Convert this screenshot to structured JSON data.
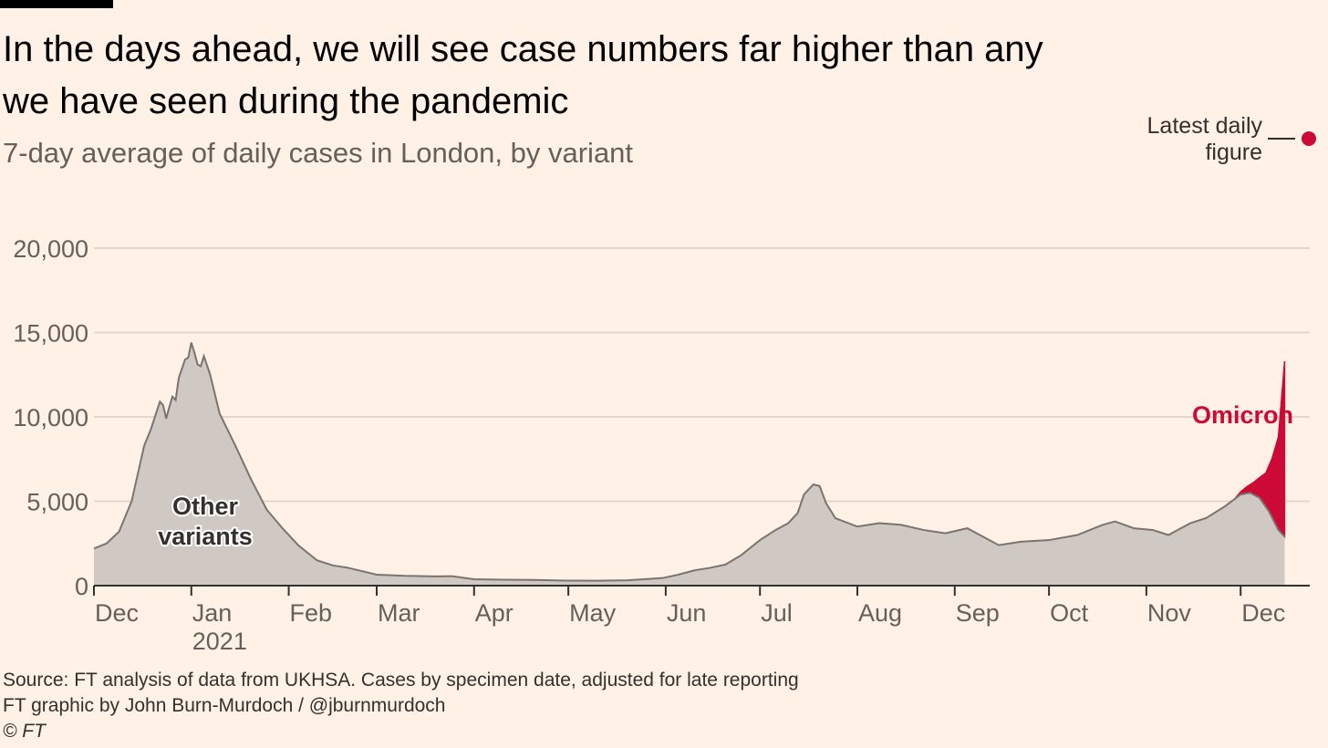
{
  "header": {
    "title": "In the days ahead, we will see case numbers far higher than any we have seen during the pandemic",
    "subtitle": "7-day average of daily cases in London, by variant"
  },
  "legend": {
    "latest_line1": "Latest daily",
    "latest_line2": "figure"
  },
  "footer": {
    "source": "Source: FT analysis of data from UKHSA. Cases by specimen date, adjusted for late reporting",
    "credit": "FT graphic by John Burn-Murdoch / @jburnmurdoch",
    "copyright": "© FT"
  },
  "colors": {
    "background": "#fff1e5",
    "other_variants_fill": "#d0c9c3",
    "other_variants_line": "#7a7470",
    "omicron": "#cc0a35",
    "grid": "#e3d7cc",
    "axis": "#33302e"
  },
  "chart_data": {
    "type": "area",
    "stacked": true,
    "ylim": [
      0,
      20000
    ],
    "yticks": [
      0,
      5000,
      10000,
      15000,
      20000
    ],
    "ytick_labels": [
      "0",
      "5,000",
      "10,000",
      "15,000",
      "20,000"
    ],
    "xlim": [
      "2020-12-01",
      "2021-12-23"
    ],
    "xticks": [
      {
        "date": "2020-12-01",
        "label": "Dec"
      },
      {
        "date": "2021-01-01",
        "label": "Jan",
        "sublabel": "2021"
      },
      {
        "date": "2021-02-01",
        "label": "Feb"
      },
      {
        "date": "2021-03-01",
        "label": "Mar"
      },
      {
        "date": "2021-04-01",
        "label": "Apr"
      },
      {
        "date": "2021-05-01",
        "label": "May"
      },
      {
        "date": "2021-06-01",
        "label": "Jun"
      },
      {
        "date": "2021-07-01",
        "label": "Jul"
      },
      {
        "date": "2021-08-01",
        "label": "Aug"
      },
      {
        "date": "2021-09-01",
        "label": "Sep"
      },
      {
        "date": "2021-10-01",
        "label": "Oct"
      },
      {
        "date": "2021-11-01",
        "label": "Nov"
      },
      {
        "date": "2021-12-01",
        "label": "Dec"
      }
    ],
    "series": [
      {
        "name": "Other variants",
        "label_lines": [
          "Other",
          "variants"
        ],
        "points": [
          [
            "2020-12-01",
            2200
          ],
          [
            "2020-12-05",
            2500
          ],
          [
            "2020-12-09",
            3200
          ],
          [
            "2020-12-13",
            5000
          ],
          [
            "2020-12-17",
            8300
          ],
          [
            "2020-12-19",
            9200
          ],
          [
            "2020-12-22",
            10900
          ],
          [
            "2020-12-23",
            10700
          ],
          [
            "2020-12-24",
            9900
          ],
          [
            "2020-12-25",
            10600
          ],
          [
            "2020-12-26",
            11200
          ],
          [
            "2020-12-27",
            11000
          ],
          [
            "2020-12-28",
            12300
          ],
          [
            "2020-12-30",
            13400
          ],
          [
            "2020-12-31",
            13500
          ],
          [
            "2021-01-01",
            14400
          ],
          [
            "2021-01-02",
            13800
          ],
          [
            "2021-01-03",
            13100
          ],
          [
            "2021-01-04",
            13000
          ],
          [
            "2021-01-05",
            13600
          ],
          [
            "2021-01-07",
            12500
          ],
          [
            "2021-01-10",
            10200
          ],
          [
            "2021-01-15",
            8300
          ],
          [
            "2021-01-20",
            6300
          ],
          [
            "2021-01-25",
            4500
          ],
          [
            "2021-01-30",
            3400
          ],
          [
            "2021-02-04",
            2400
          ],
          [
            "2021-02-10",
            1500
          ],
          [
            "2021-02-15",
            1200
          ],
          [
            "2021-02-20",
            1050
          ],
          [
            "2021-03-01",
            650
          ],
          [
            "2021-03-10",
            580
          ],
          [
            "2021-03-20",
            550
          ],
          [
            "2021-03-25",
            560
          ],
          [
            "2021-04-01",
            380
          ],
          [
            "2021-04-10",
            350
          ],
          [
            "2021-04-20",
            340
          ],
          [
            "2021-04-30",
            300
          ],
          [
            "2021-05-10",
            290
          ],
          [
            "2021-05-20",
            320
          ],
          [
            "2021-05-31",
            450
          ],
          [
            "2021-06-05",
            650
          ],
          [
            "2021-06-10",
            900
          ],
          [
            "2021-06-15",
            1050
          ],
          [
            "2021-06-20",
            1250
          ],
          [
            "2021-06-25",
            1800
          ],
          [
            "2021-07-01",
            2700
          ],
          [
            "2021-07-06",
            3300
          ],
          [
            "2021-07-10",
            3700
          ],
          [
            "2021-07-13",
            4300
          ],
          [
            "2021-07-15",
            5400
          ],
          [
            "2021-07-18",
            6000
          ],
          [
            "2021-07-20",
            5900
          ],
          [
            "2021-07-22",
            4900
          ],
          [
            "2021-07-25",
            4000
          ],
          [
            "2021-08-01",
            3500
          ],
          [
            "2021-08-08",
            3700
          ],
          [
            "2021-08-15",
            3600
          ],
          [
            "2021-08-22",
            3300
          ],
          [
            "2021-08-29",
            3100
          ],
          [
            "2021-09-05",
            3400
          ],
          [
            "2021-09-10",
            2900
          ],
          [
            "2021-09-15",
            2400
          ],
          [
            "2021-09-22",
            2600
          ],
          [
            "2021-10-01",
            2700
          ],
          [
            "2021-10-10",
            3000
          ],
          [
            "2021-10-18",
            3600
          ],
          [
            "2021-10-22",
            3800
          ],
          [
            "2021-10-28",
            3400
          ],
          [
            "2021-11-03",
            3300
          ],
          [
            "2021-11-08",
            3000
          ],
          [
            "2021-11-15",
            3700
          ],
          [
            "2021-11-20",
            4000
          ],
          [
            "2021-11-26",
            4700
          ],
          [
            "2021-12-01",
            5400
          ],
          [
            "2021-12-04",
            5500
          ],
          [
            "2021-12-07",
            5200
          ],
          [
            "2021-12-10",
            4400
          ],
          [
            "2021-12-13",
            3300
          ],
          [
            "2021-12-15",
            2900
          ]
        ]
      },
      {
        "name": "Omicron",
        "points": [
          [
            "2021-11-29",
            0
          ],
          [
            "2021-12-01",
            150
          ],
          [
            "2021-12-03",
            400
          ],
          [
            "2021-12-05",
            700
          ],
          [
            "2021-12-07",
            1200
          ],
          [
            "2021-12-09",
            2000
          ],
          [
            "2021-12-11",
            3500
          ],
          [
            "2021-12-13",
            5500
          ],
          [
            "2021-12-15",
            10400
          ]
        ]
      }
    ]
  }
}
